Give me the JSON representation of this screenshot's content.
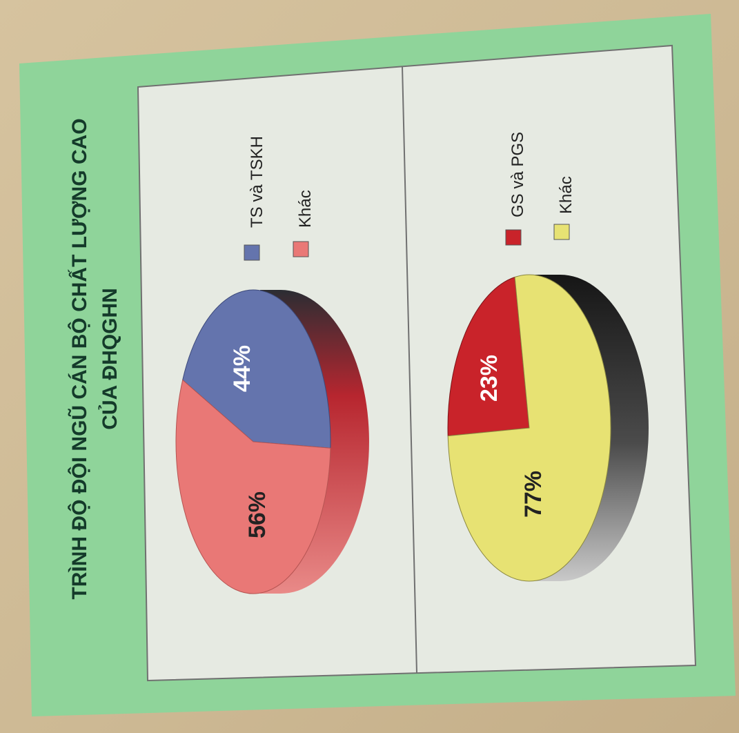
{
  "title": {
    "line1": "TRÌNH ĐỘ ĐỘI NGŨ CÁN BỘ CHẤT LƯỢNG CAO",
    "line2": "CỦA ĐHQGHN"
  },
  "colors": {
    "board": "#8fd49a",
    "panel": "#e6eae2",
    "ts_tskh": "#6474ad",
    "khac_1": "#e97876",
    "gs_pgs": "#c9232a",
    "khac_2": "#e7e273"
  },
  "chart_data": [
    {
      "type": "pie",
      "categories": [
        "TS và TSKH",
        "Khác"
      ],
      "values": [
        44,
        56
      ],
      "labels": [
        "44%",
        "56%"
      ],
      "legend": [
        "TS và TSKH",
        "Khác"
      ],
      "legend_position": "right"
    },
    {
      "type": "pie",
      "categories": [
        "GS và PGS",
        "Khác"
      ],
      "values": [
        23,
        77
      ],
      "labels": [
        "23%",
        "77%"
      ],
      "legend": [
        "GS và PGS",
        "Khác"
      ],
      "legend_position": "right"
    }
  ]
}
